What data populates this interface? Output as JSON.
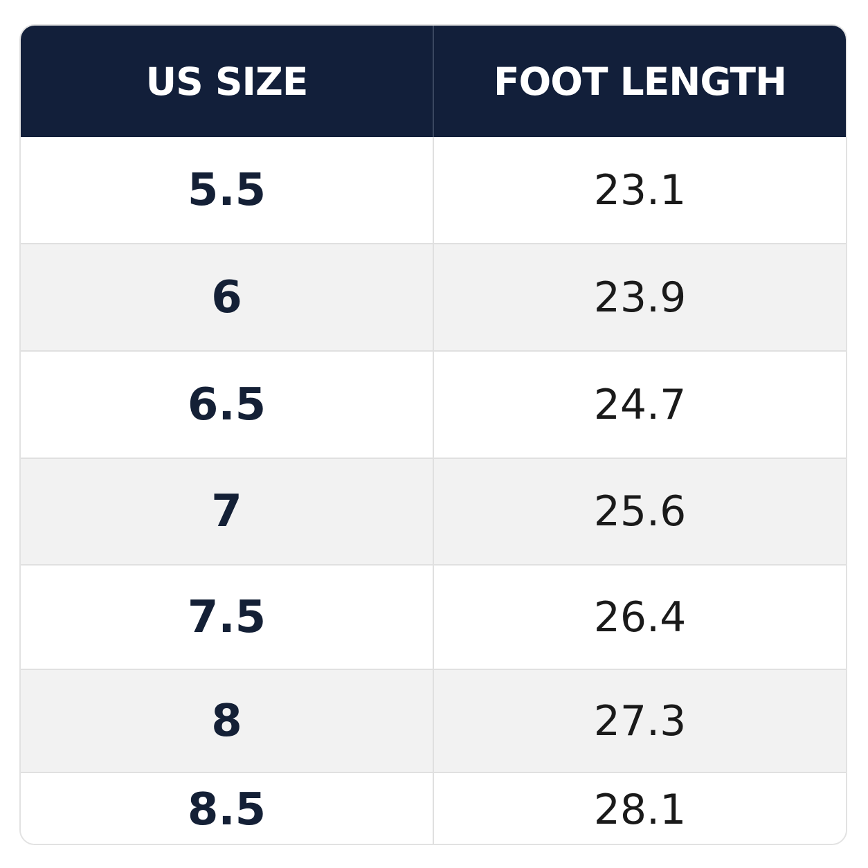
{
  "table": {
    "headers": {
      "size": "US SIZE",
      "length": "FOOT LENGTH"
    },
    "rows": [
      {
        "size": "5.5",
        "length": "23.1"
      },
      {
        "size": "6",
        "length": "23.9"
      },
      {
        "size": "6.5",
        "length": "24.7"
      },
      {
        "size": "7",
        "length": "25.6"
      },
      {
        "size": "7.5",
        "length": "26.4"
      },
      {
        "size": "8",
        "length": "27.3"
      },
      {
        "size": "8.5",
        "length": "28.1"
      }
    ]
  },
  "colors": {
    "header_background": "#121f3a",
    "header_text": "#ffffff",
    "size_text": "#142036",
    "stripe_background": "#f2f2f2"
  }
}
